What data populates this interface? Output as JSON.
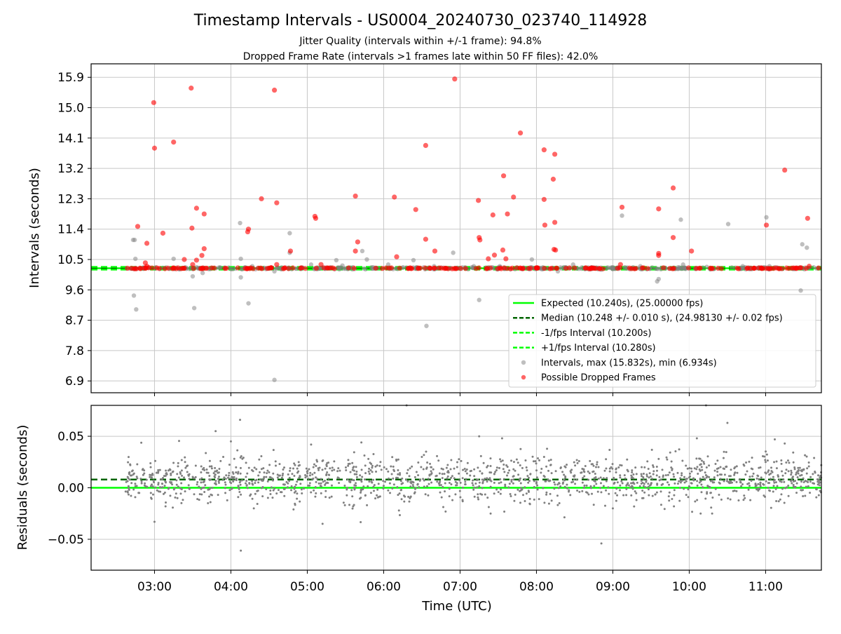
{
  "chart_data": [
    {
      "type": "scatter",
      "title": "Timestamp Intervals - US0004_20240730_023740_114928",
      "subtitle_lines": [
        "Jitter Quality (intervals within +/-1 frame): 94.8%",
        "Dropped Frame Rate (intervals >1 frames late within 50 FF files): 42.0%"
      ],
      "xlabel": "",
      "ylabel": "Intervals (seconds)",
      "x_unit": "time (UTC, hours)",
      "xlim": [
        2.17,
        11.73
      ],
      "ylim": [
        6.55,
        16.3
      ],
      "yticks": [
        6.9,
        7.8,
        8.7,
        9.6,
        10.5,
        11.4,
        12.3,
        13.2,
        14.1,
        15.0,
        15.9
      ],
      "ytick_labels": [
        "6.9",
        "7.8",
        "8.7",
        "9.6",
        "10.5",
        "11.4",
        "12.3",
        "13.2",
        "14.1",
        "15.0",
        "15.9"
      ],
      "xticks": [
        3,
        4,
        5,
        6,
        7,
        8,
        9,
        10,
        11
      ],
      "grid": true,
      "legend_position": "lower-right",
      "series": [
        {
          "name": "Expected (10.240s), (25.00000 fps)",
          "kind": "hline",
          "y": 10.24,
          "style": "solid",
          "color": "#00ff00"
        },
        {
          "name": "Median (10.248 +/- 0.010 s), (24.98130 +/- 0.02 fps)",
          "kind": "hline",
          "y": 10.248,
          "style": "dashed",
          "color": "#006400"
        },
        {
          "name": "-1/fps Interval (10.200s)",
          "kind": "hline",
          "y": 10.2,
          "style": "dashed",
          "color": "#00ff00"
        },
        {
          "name": "+1/fps Interval (10.280s)",
          "kind": "hline",
          "y": 10.28,
          "style": "dashed",
          "color": "#00ff00"
        },
        {
          "name": "Intervals, max (15.832s), min (6.934s)",
          "kind": "scatter",
          "color": "#808080",
          "points": [
            [
              2.72,
              11.08
            ],
            [
              2.74,
              11.08
            ],
            [
              2.73,
              9.43
            ],
            [
              2.76,
              9.02
            ],
            [
              2.75,
              10.52
            ],
            [
              3.25,
              10.52
            ],
            [
              3.5,
              10.0
            ],
            [
              3.52,
              9.06
            ],
            [
              3.63,
              10.1
            ],
            [
              3.75,
              10.25
            ],
            [
              4.12,
              11.58
            ],
            [
              4.13,
              10.52
            ],
            [
              4.13,
              9.97
            ],
            [
              4.23,
              9.2
            ],
            [
              4.28,
              10.3
            ],
            [
              4.57,
              6.93
            ],
            [
              4.57,
              10.15
            ],
            [
              4.77,
              11.28
            ],
            [
              4.77,
              10.7
            ],
            [
              5.05,
              10.35
            ],
            [
              5.38,
              10.48
            ],
            [
              5.46,
              10.32
            ],
            [
              5.72,
              10.75
            ],
            [
              5.78,
              10.5
            ],
            [
              6.06,
              10.35
            ],
            [
              6.39,
              10.48
            ],
            [
              6.56,
              8.53
            ],
            [
              6.66,
              10.3
            ],
            [
              6.91,
              10.7
            ],
            [
              7.18,
              10.3
            ],
            [
              7.25,
              9.3
            ],
            [
              7.52,
              10.3
            ],
            [
              7.94,
              10.5
            ],
            [
              8.28,
              10.15
            ],
            [
              8.48,
              10.35
            ],
            [
              8.85,
              10.2
            ],
            [
              9.12,
              11.8
            ],
            [
              9.36,
              10.3
            ],
            [
              9.58,
              9.85
            ],
            [
              9.6,
              9.92
            ],
            [
              9.89,
              11.68
            ],
            [
              9.92,
              10.35
            ],
            [
              10.23,
              10.28
            ],
            [
              10.51,
              11.55
            ],
            [
              10.7,
              10.3
            ],
            [
              11.01,
              11.75
            ],
            [
              11.05,
              10.3
            ],
            [
              11.43,
              10.25
            ],
            [
              11.46,
              9.58
            ],
            [
              11.48,
              10.95
            ],
            [
              11.54,
              10.85
            ]
          ]
        },
        {
          "name": "Possible Dropped Frames",
          "kind": "scatter",
          "color": "#ff0000",
          "points": [
            [
              2.78,
              11.48
            ],
            [
              2.9,
              10.98
            ],
            [
              2.88,
              10.4
            ],
            [
              2.9,
              10.3
            ],
            [
              2.99,
              15.15
            ],
            [
              3.0,
              13.8
            ],
            [
              3.11,
              11.28
            ],
            [
              3.25,
              13.98
            ],
            [
              3.39,
              10.5
            ],
            [
              3.48,
              15.58
            ],
            [
              3.49,
              11.43
            ],
            [
              3.5,
              10.35
            ],
            [
              3.55,
              12.02
            ],
            [
              3.55,
              10.48
            ],
            [
              3.62,
              10.62
            ],
            [
              3.65,
              11.85
            ],
            [
              3.65,
              10.82
            ],
            [
              4.23,
              11.4
            ],
            [
              4.22,
              11.32
            ],
            [
              4.4,
              12.3
            ],
            [
              4.57,
              15.52
            ],
            [
              4.6,
              12.18
            ],
            [
              4.6,
              10.35
            ],
            [
              4.78,
              10.75
            ],
            [
              5.1,
              11.78
            ],
            [
              5.11,
              11.72
            ],
            [
              5.18,
              10.35
            ],
            [
              5.63,
              12.38
            ],
            [
              5.63,
              10.75
            ],
            [
              5.66,
              11.02
            ],
            [
              6.14,
              12.35
            ],
            [
              6.17,
              10.58
            ],
            [
              6.42,
              11.98
            ],
            [
              6.55,
              13.88
            ],
            [
              6.55,
              11.1
            ],
            [
              6.67,
              10.75
            ],
            [
              6.93,
              15.85
            ],
            [
              7.24,
              12.25
            ],
            [
              7.25,
              11.15
            ],
            [
              7.26,
              11.08
            ],
            [
              7.37,
              10.52
            ],
            [
              7.43,
              11.82
            ],
            [
              7.45,
              10.63
            ],
            [
              7.57,
              12.98
            ],
            [
              7.56,
              10.78
            ],
            [
              7.6,
              10.52
            ],
            [
              7.62,
              11.85
            ],
            [
              7.7,
              12.35
            ],
            [
              7.79,
              14.25
            ],
            [
              8.1,
              13.75
            ],
            [
              8.1,
              12.28
            ],
            [
              8.11,
              11.52
            ],
            [
              8.24,
              13.62
            ],
            [
              8.22,
              12.88
            ],
            [
              8.24,
              11.6
            ],
            [
              8.23,
              10.8
            ],
            [
              8.25,
              10.78
            ],
            [
              9.12,
              12.05
            ],
            [
              9.1,
              10.35
            ],
            [
              9.6,
              12.0
            ],
            [
              9.6,
              10.68
            ],
            [
              9.6,
              10.62
            ],
            [
              9.79,
              12.62
            ],
            [
              9.79,
              11.15
            ],
            [
              10.03,
              10.75
            ],
            [
              11.01,
              11.52
            ],
            [
              11.25,
              13.15
            ],
            [
              11.55,
              11.72
            ],
            [
              11.57,
              10.3
            ]
          ]
        }
      ]
    },
    {
      "type": "scatter",
      "title": "",
      "xlabel": "Time (UTC)",
      "ylabel": "Residuals (seconds)",
      "x_unit": "time (UTC, hours)",
      "xlim": [
        2.17,
        11.73
      ],
      "ylim": [
        -0.08,
        0.08
      ],
      "yticks": [
        -0.05,
        0.0,
        0.05
      ],
      "ytick_labels": [
        "−0.05",
        "0.00",
        "0.05"
      ],
      "xticks": [
        3,
        4,
        5,
        6,
        7,
        8,
        9,
        10,
        11
      ],
      "xtick_labels": [
        "03:00",
        "04:00",
        "05:00",
        "06:00",
        "07:00",
        "08:00",
        "09:00",
        "10:00",
        "11:00"
      ],
      "grid": true,
      "series": [
        {
          "kind": "hline",
          "y": 0.0,
          "style": "solid",
          "color": "#00ff00"
        },
        {
          "kind": "hline",
          "y": 0.008,
          "style": "dashed",
          "color": "#006400"
        },
        {
          "kind": "scatter",
          "color": "#808080",
          "note_range": [
            2.62,
            11.73
          ],
          "points": [
            [
              3.8,
              0.055
            ],
            [
              4.12,
              0.066
            ],
            [
              4.13,
              -0.061
            ],
            [
              6.3,
              0.08
            ],
            [
              8.85,
              -0.054
            ],
            [
              10.22,
              0.08
            ],
            [
              10.5,
              0.063
            ],
            [
              3.0,
              -0.033
            ],
            [
              4.0,
              0.045
            ],
            [
              5.05,
              0.042
            ],
            [
              5.2,
              -0.035
            ],
            [
              7.25,
              0.05
            ],
            [
              7.55,
              0.048
            ],
            [
              10.1,
              0.048
            ],
            [
              11.12,
              0.047
            ],
            [
              11.25,
              0.043
            ],
            [
              2.7,
              0.012
            ],
            [
              2.8,
              -0.005
            ],
            [
              2.95,
              0.02
            ],
            [
              3.1,
              0.004
            ],
            [
              3.2,
              0.018
            ],
            [
              3.3,
              -0.01
            ],
            [
              3.4,
              0.025
            ],
            [
              3.6,
              0.008
            ],
            [
              3.7,
              -0.015
            ],
            [
              3.9,
              0.03
            ],
            [
              4.3,
              -0.02
            ],
            [
              4.5,
              0.015
            ],
            [
              4.7,
              -0.008
            ],
            [
              4.9,
              0.022
            ],
            [
              5.4,
              0.01
            ],
            [
              5.6,
              -0.018
            ],
            [
              5.8,
              0.028
            ],
            [
              6.0,
              0.002
            ],
            [
              6.2,
              -0.022
            ],
            [
              6.5,
              0.03
            ],
            [
              6.7,
              0.006
            ],
            [
              6.9,
              -0.012
            ],
            [
              7.1,
              0.024
            ],
            [
              7.4,
              -0.025
            ],
            [
              7.7,
              0.018
            ],
            [
              7.9,
              -0.004
            ],
            [
              8.1,
              0.03
            ],
            [
              8.3,
              -0.015
            ],
            [
              8.5,
              0.012
            ],
            [
              8.7,
              0.026
            ],
            [
              9.0,
              -0.02
            ],
            [
              9.2,
              0.016
            ],
            [
              9.4,
              -0.01
            ],
            [
              9.6,
              0.028
            ],
            [
              9.8,
              -0.018
            ],
            [
              10.0,
              0.01
            ],
            [
              10.3,
              -0.025
            ],
            [
              10.6,
              0.02
            ],
            [
              10.8,
              -0.012
            ],
            [
              11.0,
              0.025
            ],
            [
              11.3,
              -0.008
            ],
            [
              11.5,
              0.018
            ],
            [
              11.7,
              0.005
            ]
          ]
        }
      ]
    }
  ]
}
